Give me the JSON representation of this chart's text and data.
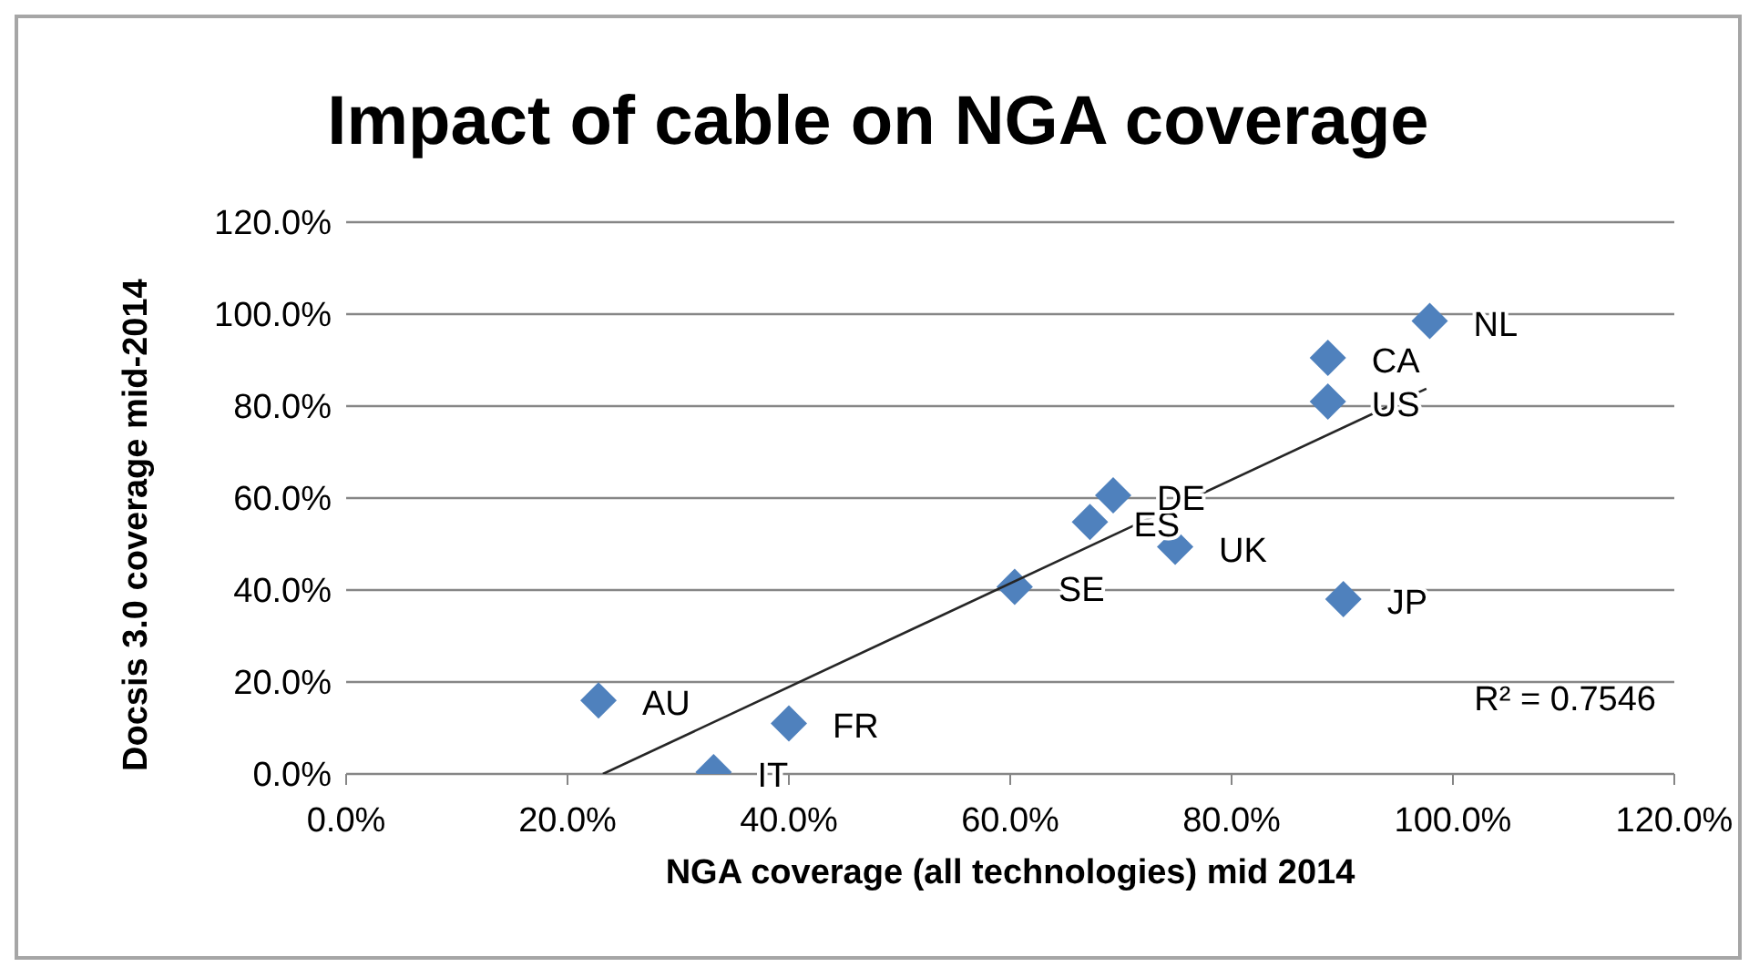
{
  "chart_data": {
    "type": "scatter",
    "title": "Impact of cable on NGA coverage",
    "xlabel": "NGA coverage (all technologies) mid 2014",
    "ylabel": "Docsis 3.0 coverage mid-2014",
    "series": [
      {
        "type": "scatter",
        "color": "#4f81bd",
        "marker": "diamond",
        "x": [
          22.8,
          33.2,
          40,
          60.4,
          67.2,
          69.3,
          74.9,
          90.1,
          88.7,
          88.7,
          97.9
        ],
        "values": [
          16,
          0.4,
          11,
          40.7,
          54.8,
          60.6,
          49.4,
          38,
          81,
          90.5,
          98.5
        ],
        "value_labels": [
          "AU",
          "IT",
          "FR",
          "SE",
          "ES",
          "DE",
          "UK",
          "JP",
          "US",
          "CA",
          "NL"
        ]
      },
      {
        "type": "line",
        "color": "#262626",
        "marker": "none",
        "line_style": "solid",
        "x": [
          23.2,
          97.6
        ],
        "values": [
          0,
          83.8
        ]
      }
    ],
    "xlim": [
      0,
      120
    ],
    "ylim": [
      0,
      120
    ],
    "xticks": [
      {
        "value": 0,
        "label": "0.0%"
      },
      {
        "value": 20,
        "label": "20.0%"
      },
      {
        "value": 40,
        "label": "40.0%"
      },
      {
        "value": 60,
        "label": "60.0%"
      },
      {
        "value": 80,
        "label": "80.0%"
      },
      {
        "value": 100,
        "label": "100.0%"
      },
      {
        "value": 120,
        "label": "120.0%"
      }
    ],
    "yticks": [
      {
        "value": 0,
        "label": "0.0%"
      },
      {
        "value": 20,
        "label": "20.0%"
      },
      {
        "value": 40,
        "label": "40.0%"
      },
      {
        "value": 60,
        "label": "60.0%"
      },
      {
        "value": 80,
        "label": "80.0%"
      },
      {
        "value": 100,
        "label": "100.0%"
      },
      {
        "value": 120,
        "label": "120.0%"
      }
    ],
    "grid": "y",
    "legend": false,
    "annotations": [
      "R² = 0.7546"
    ]
  }
}
